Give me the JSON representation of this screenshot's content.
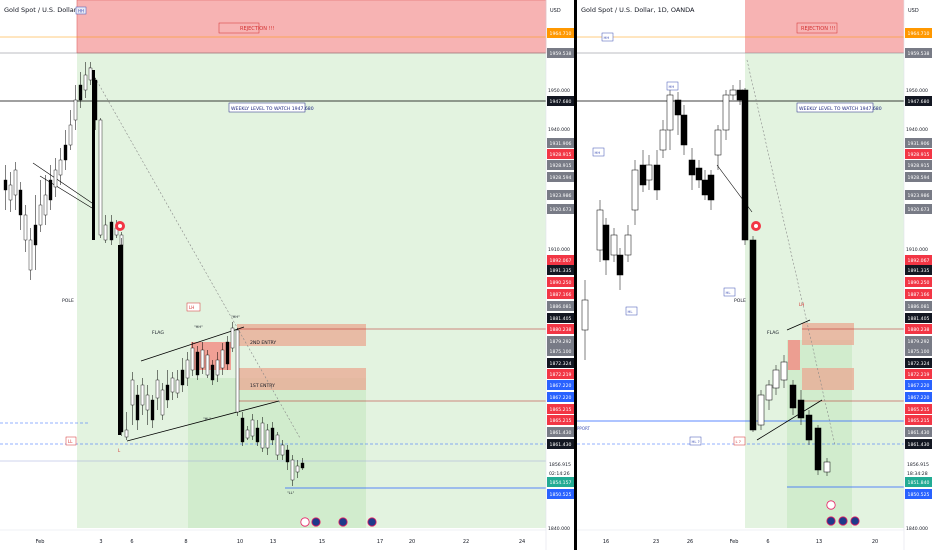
{
  "colors": {
    "up_candle": "#ffffff",
    "down_candle": "#000000",
    "green_zone": "#e3f3e0",
    "green_zone_dark": "#c9e8c4",
    "red_zone": "#f7b3b3",
    "entry_zone": "#eaa892",
    "price_red": "#f23645",
    "price_blue": "#2962ff",
    "price_green": "#22ab94",
    "price_orange": "#ff9800",
    "price_gray": "#787b86",
    "price_black": "#131722"
  },
  "left_chart": {
    "title": "Gold Spot / U.S. Dollar, 4h, OANDA",
    "currency": "USD",
    "annotations": {
      "rejection": "REJECTION !!!",
      "weekly_level": "WEEKLY LEVEL TO WATCH 1947.680",
      "pole": "POLE",
      "flag": "FLAG",
      "entry2": "2ND ENTRY",
      "entry1": "1ST ENTRY",
      "hh_top": "HH",
      "hh_flag": "\"HH\"",
      "hl_flag": "\"HL\"",
      "ll_flag": "\"LL\"",
      "lh": "LH",
      "ll_box": "LL",
      "l_mark": "L",
      "ll_bottom": "\"LL\""
    },
    "x_labels": [
      "Feb",
      "3",
      "6",
      "8",
      "10",
      "13",
      "15",
      "17",
      "20",
      "22",
      "24"
    ],
    "y_labels": [
      "1950.000",
      "1940.000",
      "1910.000",
      "1840.000"
    ],
    "price_tags": [
      {
        "text": "1964.710",
        "type": "orange"
      },
      {
        "text": "1959.538",
        "type": "gray"
      },
      {
        "text": "1947.680",
        "type": "black"
      },
      {
        "text": "1931.906",
        "type": "gray"
      },
      {
        "text": "1928.915",
        "type": "red"
      },
      {
        "text": "1928.915",
        "type": "gray"
      },
      {
        "text": "1928.594",
        "type": "gray"
      },
      {
        "text": "1923.986",
        "type": "gray"
      },
      {
        "text": "1920.673",
        "type": "gray"
      },
      {
        "text": "1892.067",
        "type": "red"
      },
      {
        "text": "1891.335",
        "type": "black"
      },
      {
        "text": "1890.250",
        "type": "red"
      },
      {
        "text": "1887.166",
        "type": "red"
      },
      {
        "text": "1886.081",
        "type": "gray"
      },
      {
        "text": "1881.405",
        "type": "black"
      },
      {
        "text": "1880.238",
        "type": "red"
      },
      {
        "text": "1879.292",
        "type": "gray"
      },
      {
        "text": "1875.100",
        "type": "gray"
      },
      {
        "text": "1872.324",
        "type": "black"
      },
      {
        "text": "1872.219",
        "type": "red"
      },
      {
        "text": "1867.220",
        "type": "blue"
      },
      {
        "text": "1867.220",
        "type": "blue"
      },
      {
        "text": "1865.215",
        "type": "red"
      },
      {
        "text": "1865.215",
        "type": "red"
      },
      {
        "text": "1861.430",
        "type": "gray"
      },
      {
        "text": "1861.430",
        "type": "black"
      },
      {
        "text": "1856.915",
        "type": "plain"
      },
      {
        "text": "02:14:26",
        "type": "plain"
      },
      {
        "text": "1854.157",
        "type": "green"
      },
      {
        "text": "1850.525",
        "type": "blue"
      }
    ]
  },
  "right_chart": {
    "title": "Gold Spot / U.S. Dollar, 1D, OANDA",
    "currency": "USD",
    "annotations": {
      "rejection": "REJECTION !!!",
      "weekly_level": "WEEKLY LEVEL TO WATCH 1947.680",
      "pole": "POLE",
      "flag": "FLAG",
      "hh1": "HH",
      "hh2": "HH",
      "hh3": "HH",
      "hl1": "HL",
      "hl2": "HL",
      "hl3": "HL ?",
      "l_box": "L ?",
      "lh": "LH",
      "support": "PPORT"
    },
    "x_labels": [
      "16",
      "23",
      "26",
      "Feb",
      "6",
      "13",
      "20"
    ],
    "y_labels": [
      "1950.000",
      "1940.000",
      "1910.000",
      "1840.000"
    ],
    "price_tags": [
      {
        "text": "1964.710",
        "type": "orange"
      },
      {
        "text": "1959.538",
        "type": "gray"
      },
      {
        "text": "1947.680",
        "type": "black"
      },
      {
        "text": "1931.906",
        "type": "gray"
      },
      {
        "text": "1928.915",
        "type": "red"
      },
      {
        "text": "1928.915",
        "type": "gray"
      },
      {
        "text": "1928.594",
        "type": "gray"
      },
      {
        "text": "1923.986",
        "type": "gray"
      },
      {
        "text": "1920.673",
        "type": "gray"
      },
      {
        "text": "1892.067",
        "type": "red"
      },
      {
        "text": "1891.335",
        "type": "black"
      },
      {
        "text": "1890.250",
        "type": "red"
      },
      {
        "text": "1887.166",
        "type": "red"
      },
      {
        "text": "1886.081",
        "type": "gray"
      },
      {
        "text": "1881.405",
        "type": "black"
      },
      {
        "text": "1880.238",
        "type": "red"
      },
      {
        "text": "1879.292",
        "type": "gray"
      },
      {
        "text": "1875.100",
        "type": "gray"
      },
      {
        "text": "1872.324",
        "type": "black"
      },
      {
        "text": "1872.219",
        "type": "red"
      },
      {
        "text": "1867.220",
        "type": "blue"
      },
      {
        "text": "1867.220",
        "type": "blue"
      },
      {
        "text": "1865.215",
        "type": "red"
      },
      {
        "text": "1865.215",
        "type": "red"
      },
      {
        "text": "1861.430",
        "type": "gray"
      },
      {
        "text": "1861.430",
        "type": "black"
      },
      {
        "text": "1856.915",
        "type": "plain"
      },
      {
        "text": "18:34:28",
        "type": "plain"
      },
      {
        "text": "1851.840",
        "type": "green"
      },
      {
        "text": "1850.525",
        "type": "blue"
      }
    ]
  }
}
